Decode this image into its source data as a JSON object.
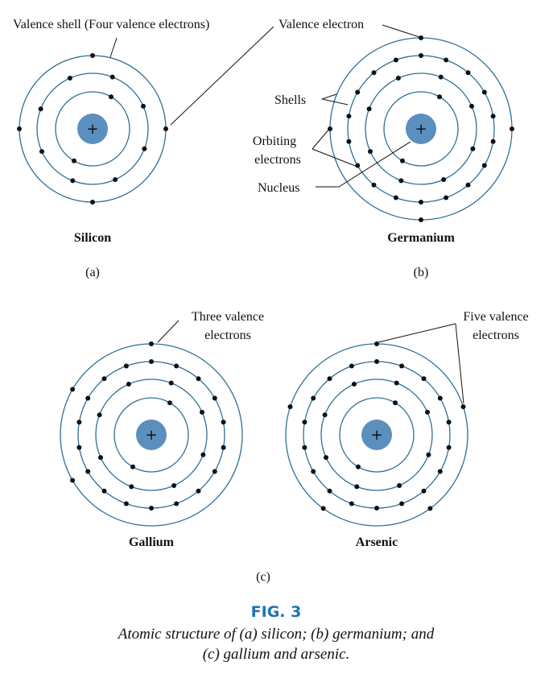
{
  "colors": {
    "shell": "#2c6f99",
    "nucleus": "#5b8fbe",
    "electron": "#111111",
    "fig_title": "#1a75b5",
    "text": "#111111"
  },
  "nucleus_symbol": "+",
  "labels": {
    "valence_shell": "Valence shell (Four valence electrons)",
    "valence_electron": "Valence electron",
    "shells": "Shells",
    "orbiting_1": "Orbiting",
    "orbiting_2": "electrons",
    "nucleus": "Nucleus",
    "three_valence_1": "Three valence",
    "three_valence_2": "electrons",
    "five_valence_1": "Five valence",
    "five_valence_2": "electrons"
  },
  "atoms": [
    {
      "name": "Silicon",
      "electrons_per_shell": [
        2,
        8,
        4
      ]
    },
    {
      "name": "Germanium",
      "electrons_per_shell": [
        2,
        8,
        18,
        4
      ]
    },
    {
      "name": "Gallium",
      "electrons_per_shell": [
        2,
        8,
        18,
        3
      ]
    },
    {
      "name": "Arsenic",
      "electrons_per_shell": [
        2,
        8,
        18,
        5
      ]
    }
  ],
  "parts": {
    "a": "(a)",
    "b": "(b)",
    "c": "(c)"
  },
  "figure": {
    "title": "FIG. 3",
    "caption_line1": "Atomic structure of (a) silicon; (b) germanium; and",
    "caption_line2": "(c) gallium and arsenic."
  }
}
